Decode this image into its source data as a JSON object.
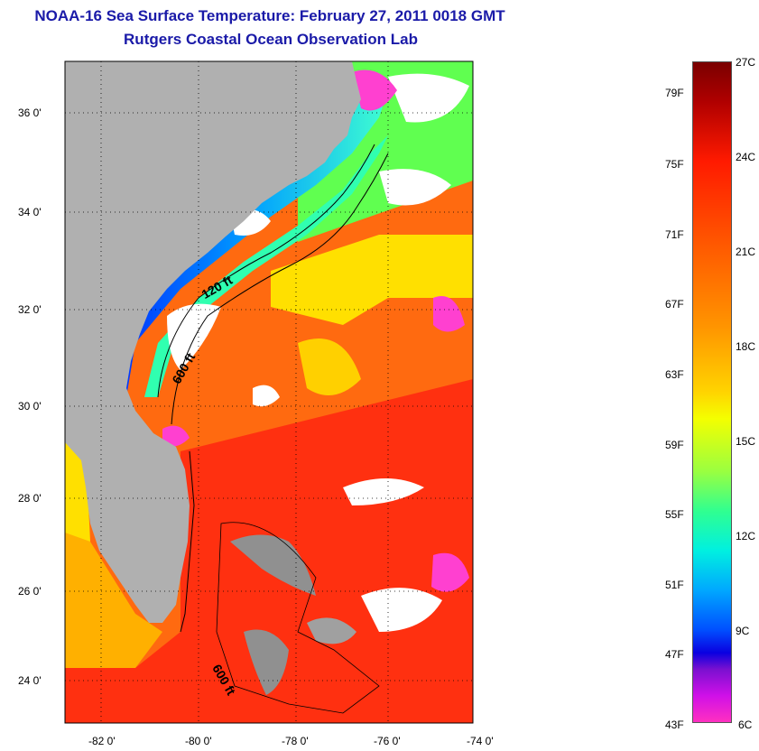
{
  "header": {
    "title": "NOAA-16 Sea Surface Temperature:  February 27, 2011 0018 GMT",
    "subtitle": "Rutgers Coastal Ocean Observation Lab"
  },
  "map": {
    "lat_ticks": [
      "36 0'",
      "34 0'",
      "32 0'",
      "30 0'",
      "28 0'",
      "26 0'",
      "24 0'"
    ],
    "lon_ticks": [
      "-82 0'",
      "-80 0'",
      "-78 0'",
      "-76 0'",
      "-74 0'"
    ],
    "contour_labels": [
      "120 ft",
      "600 ft",
      "600 ft"
    ],
    "colors": {
      "land": "#b0b0b0",
      "cloud": "#ffffff",
      "warm": "#ff3a10",
      "cool": "#0050ff"
    }
  },
  "colorbar": {
    "celsius": [
      "27C",
      "24C",
      "21C",
      "18C",
      "15C",
      "12C",
      "9C",
      "6C"
    ],
    "fahrenheit": [
      "79F",
      "75F",
      "71F",
      "67F",
      "63F",
      "59F",
      "55F",
      "51F",
      "47F",
      "43F"
    ]
  }
}
